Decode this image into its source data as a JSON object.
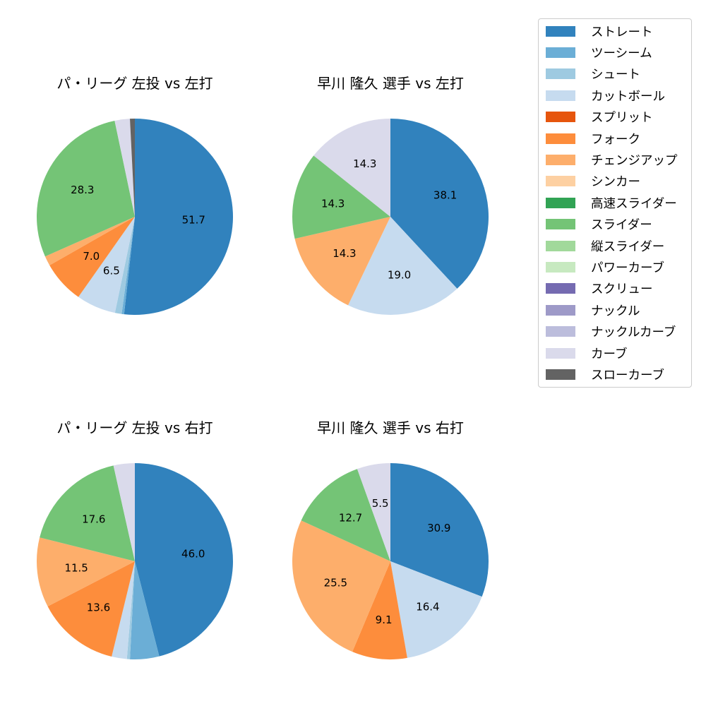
{
  "legend": {
    "items": [
      {
        "label": "ストレート",
        "color": "#3182bd"
      },
      {
        "label": "ツーシーム",
        "color": "#6baed6"
      },
      {
        "label": "シュート",
        "color": "#9ecae1"
      },
      {
        "label": "カットボール",
        "color": "#c6dbef"
      },
      {
        "label": "スプリット",
        "color": "#e6550d"
      },
      {
        "label": "フォーク",
        "color": "#fd8d3c"
      },
      {
        "label": "チェンジアップ",
        "color": "#fdae6b"
      },
      {
        "label": "シンカー",
        "color": "#fdd0a2"
      },
      {
        "label": "高速スライダー",
        "color": "#31a354"
      },
      {
        "label": "スライダー",
        "color": "#74c476"
      },
      {
        "label": "縦スライダー",
        "color": "#a1d99b"
      },
      {
        "label": "パワーカーブ",
        "color": "#c7e9c0"
      },
      {
        "label": "スクリュー",
        "color": "#756bb1"
      },
      {
        "label": "ナックル",
        "color": "#9e9ac8"
      },
      {
        "label": "ナックルカーブ",
        "color": "#bcbddc"
      },
      {
        "label": "カーブ",
        "color": "#dadaeb"
      },
      {
        "label": "スローカーブ",
        "color": "#636363"
      }
    ]
  },
  "chart_data": [
    {
      "type": "pie",
      "title": "パ・リーグ 左投 vs 左打",
      "startangle": 90,
      "direction": "clockwise",
      "label_threshold": 5,
      "slices": [
        {
          "label": "ストレート",
          "value": 51.7,
          "color": "#3182bd"
        },
        {
          "label": "ツーシーム",
          "value": 0.4,
          "color": "#6baed6"
        },
        {
          "label": "シュート",
          "value": 1.1,
          "color": "#9ecae1"
        },
        {
          "label": "カットボール",
          "value": 6.5,
          "color": "#c6dbef"
        },
        {
          "label": "フォーク",
          "value": 7.0,
          "color": "#fd8d3c"
        },
        {
          "label": "チェンジアップ",
          "value": 1.6,
          "color": "#fdae6b"
        },
        {
          "label": "スライダー",
          "value": 28.3,
          "color": "#74c476"
        },
        {
          "label": "カーブ",
          "value": 2.5,
          "color": "#dadaeb"
        },
        {
          "label": "スローカーブ",
          "value": 0.8,
          "color": "#636363"
        }
      ],
      "shown_labels": [
        "51.7",
        "28.3"
      ]
    },
    {
      "type": "pie",
      "title": "早川 隆久 選手 vs 左打",
      "startangle": 90,
      "direction": "clockwise",
      "label_threshold": 5,
      "slices": [
        {
          "label": "ストレート",
          "value": 38.1,
          "color": "#3182bd"
        },
        {
          "label": "カットボール",
          "value": 19.0,
          "color": "#c6dbef"
        },
        {
          "label": "チェンジアップ",
          "value": 14.3,
          "color": "#fdae6b"
        },
        {
          "label": "スライダー",
          "value": 14.3,
          "color": "#74c476"
        },
        {
          "label": "カーブ",
          "value": 14.3,
          "color": "#dadaeb"
        }
      ],
      "shown_labels": [
        "38.1",
        "19.0",
        "14.3",
        "14.3",
        "14.3"
      ]
    },
    {
      "type": "pie",
      "title": "パ・リーグ 左投 vs 右打",
      "startangle": 90,
      "direction": "clockwise",
      "label_threshold": 5,
      "slices": [
        {
          "label": "ストレート",
          "value": 46.0,
          "color": "#3182bd"
        },
        {
          "label": "ツーシーム",
          "value": 4.8,
          "color": "#6baed6"
        },
        {
          "label": "シュート",
          "value": 0.5,
          "color": "#9ecae1"
        },
        {
          "label": "カットボール",
          "value": 2.5,
          "color": "#c6dbef"
        },
        {
          "label": "フォーク",
          "value": 13.6,
          "color": "#fd8d3c"
        },
        {
          "label": "チェンジアップ",
          "value": 11.5,
          "color": "#fdae6b"
        },
        {
          "label": "スライダー",
          "value": 17.6,
          "color": "#74c476"
        },
        {
          "label": "カーブ",
          "value": 3.5,
          "color": "#dadaeb"
        }
      ],
      "shown_labels": [
        "46.0",
        "13.6",
        "11.5",
        "17.6"
      ]
    },
    {
      "type": "pie",
      "title": "早川 隆久 選手 vs 右打",
      "startangle": 90,
      "direction": "clockwise",
      "label_threshold": 5,
      "slices": [
        {
          "label": "ストレート",
          "value": 30.9,
          "color": "#3182bd"
        },
        {
          "label": "カットボール",
          "value": 16.4,
          "color": "#c6dbef"
        },
        {
          "label": "フォーク",
          "value": 9.1,
          "color": "#fd8d3c"
        },
        {
          "label": "チェンジアップ",
          "value": 25.5,
          "color": "#fdae6b"
        },
        {
          "label": "スライダー",
          "value": 12.7,
          "color": "#74c476"
        },
        {
          "label": "カーブ",
          "value": 5.5,
          "color": "#dadaeb"
        }
      ],
      "shown_labels": [
        "30.9",
        "16.4",
        "9.1",
        "25.5",
        "12.7",
        "5.5"
      ]
    }
  ]
}
